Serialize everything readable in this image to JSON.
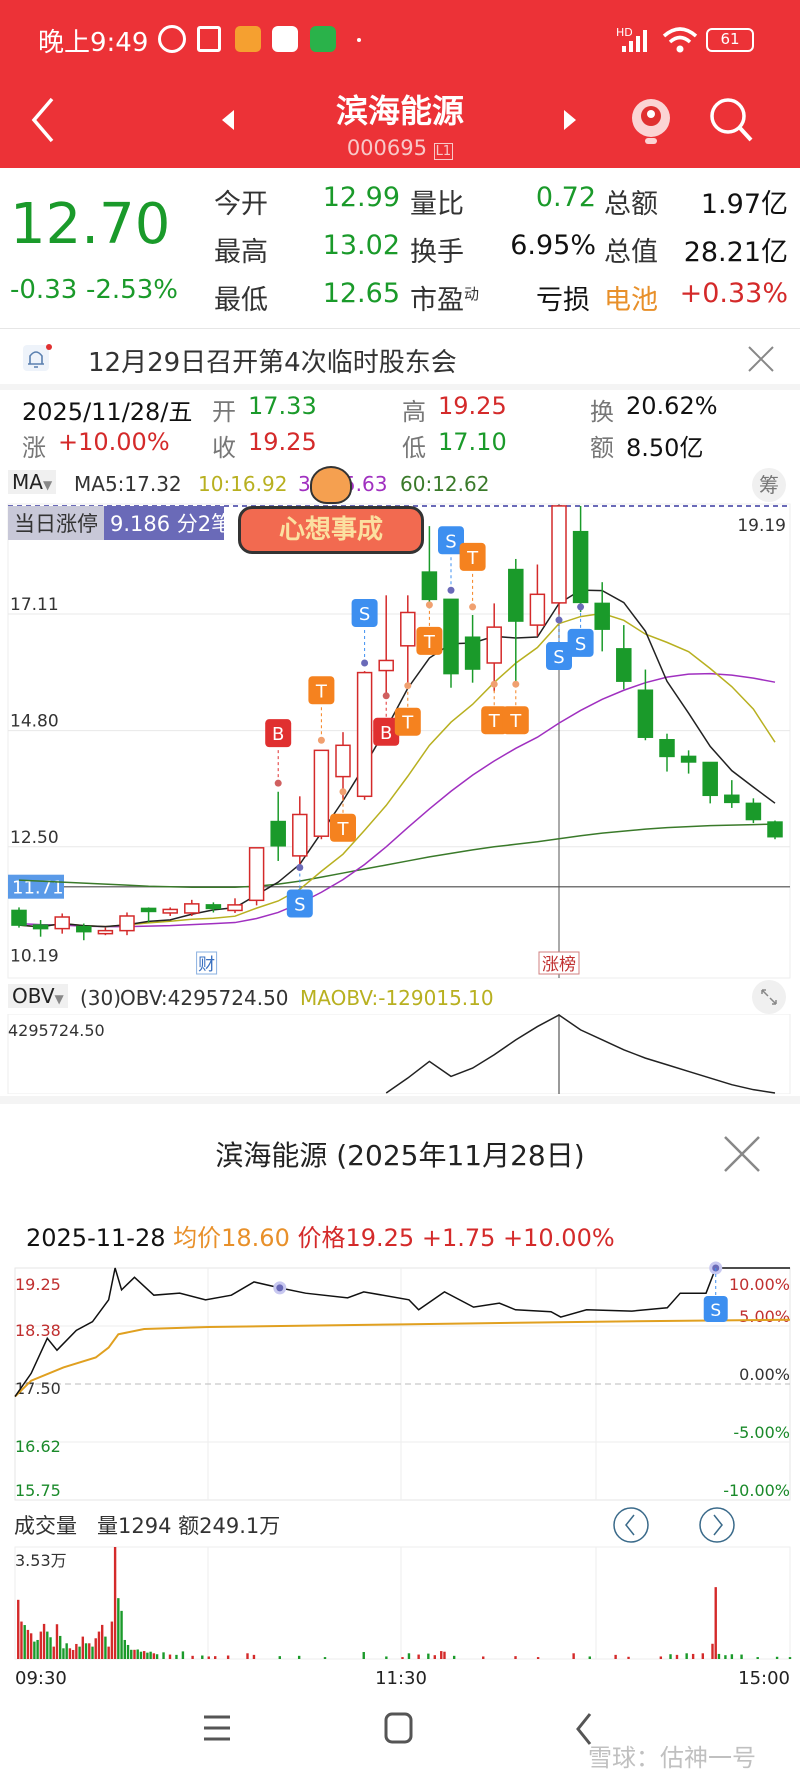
{
  "status": {
    "time": "晚上9:49",
    "battery": "61",
    "signal": "HD"
  },
  "header": {
    "title": "滨海能源",
    "code": "000695",
    "level": "L1"
  },
  "quote": {
    "price": "12.70",
    "change": "-0.33",
    "change_pct": "-2.53%",
    "rows": [
      [
        {
          "l": "今开",
          "v": "12.99",
          "c": "g"
        },
        {
          "l": "量比",
          "v": "0.72",
          "c": "g"
        },
        {
          "l": "总额",
          "v": "1.97亿",
          "c": "k"
        }
      ],
      [
        {
          "l": "最高",
          "v": "13.02",
          "c": "g"
        },
        {
          "l": "换手",
          "v": "6.95%",
          "c": "k"
        },
        {
          "l": "总值",
          "v": "28.21亿",
          "c": "k"
        }
      ],
      [
        {
          "l": "最低",
          "v": "12.65",
          "c": "g"
        },
        {
          "l": "市盈",
          "sup": "动",
          "v": "亏损",
          "c": "k"
        },
        {
          "l": "电池",
          "v": "+0.33%",
          "c": "r"
        }
      ]
    ]
  },
  "notice": {
    "text": "12月29日召开第4次临时股东会"
  },
  "day_info": {
    "date": "2025/11/28/五",
    "open_l": "开",
    "open": "17.33",
    "high_l": "高",
    "high": "19.25",
    "turn_l": "换",
    "turn": "20.62%",
    "chg_l": "涨",
    "chg": "+10.00%",
    "close_l": "收",
    "close": "19.25",
    "low_l": "低",
    "low": "17.10",
    "amt_l": "额",
    "amt": "8.50亿"
  },
  "ma_bar": {
    "selector": "MA",
    "ma5": "MA5:17.32",
    "ma10": "10:16.92",
    "ma30": "30:15.63",
    "ma60": "60:12.62",
    "chip_btn": "筹"
  },
  "limit_tag": {
    "label": "当日涨停",
    "value": "9.186 分2笔"
  },
  "sticker": {
    "text": "心想事成"
  },
  "colors": {
    "up": "#d42a2a",
    "down": "#1a9a2a",
    "ma5": "#222222",
    "ma10": "#b8b020",
    "ma30": "#a030c0",
    "ma60": "#3a7a2a",
    "avg": "#e0a020",
    "header": "#ec3237"
  },
  "chart_data": [
    {
      "type": "candlestick",
      "title": "",
      "y_ticks": [
        "19.19",
        "17.11",
        "14.80",
        "12.50",
        "10.19"
      ],
      "price_line": "11.71",
      "crosshair_index": 25,
      "event_labels": [
        {
          "index": 6,
          "text": "财"
        },
        {
          "index": 25,
          "text": "涨榜"
        }
      ],
      "ohlc": [
        [
          11.24,
          11.3,
          10.9,
          10.95
        ],
        [
          10.95,
          11.05,
          10.72,
          10.88
        ],
        [
          10.88,
          11.18,
          10.78,
          11.11
        ],
        [
          10.92,
          10.98,
          10.65,
          10.82
        ],
        [
          10.78,
          10.9,
          10.75,
          10.84
        ],
        [
          10.84,
          11.2,
          10.75,
          11.13
        ],
        [
          11.28,
          11.3,
          11.0,
          11.22
        ],
        [
          11.19,
          11.3,
          11.13,
          11.26
        ],
        [
          11.19,
          11.45,
          11.13,
          11.37
        ],
        [
          11.35,
          11.4,
          11.2,
          11.28
        ],
        [
          11.24,
          11.48,
          11.19,
          11.35
        ],
        [
          11.44,
          12.48,
          11.34,
          12.48
        ],
        [
          13.0,
          13.59,
          12.22,
          12.52
        ],
        [
          12.32,
          13.5,
          12.12,
          13.14
        ],
        [
          12.71,
          14.41,
          12.65,
          14.41
        ],
        [
          13.89,
          14.77,
          13.43,
          14.51
        ],
        [
          13.5,
          15.98,
          13.43,
          15.95
        ],
        [
          15.99,
          17.48,
          15.46,
          16.19
        ],
        [
          16.48,
          17.48,
          15.72,
          17.14
        ],
        [
          17.94,
          18.85,
          17.22,
          17.4
        ],
        [
          17.4,
          17.4,
          15.65,
          15.93
        ],
        [
          16.65,
          17.09,
          15.75,
          16.02
        ],
        [
          16.14,
          17.32,
          15.58,
          16.85
        ],
        [
          17.99,
          18.2,
          15.72,
          16.97
        ],
        [
          16.89,
          18.09,
          16.67,
          17.5
        ],
        [
          17.33,
          19.25,
          17.1,
          19.25
        ],
        [
          18.74,
          19.25,
          17.15,
          17.34
        ],
        [
          17.32,
          17.74,
          16.37,
          16.81
        ],
        [
          16.42,
          16.89,
          15.62,
          15.78
        ],
        [
          15.6,
          16.01,
          14.61,
          14.67
        ],
        [
          14.62,
          14.74,
          13.99,
          14.29
        ],
        [
          14.29,
          14.41,
          13.95,
          14.18
        ],
        [
          14.17,
          14.17,
          13.36,
          13.52
        ],
        [
          13.52,
          13.82,
          13.27,
          13.38
        ],
        [
          13.36,
          13.46,
          12.97,
          13.04
        ],
        [
          12.99,
          13.02,
          12.65,
          12.7
        ]
      ],
      "ma30": [
        10.98,
        10.96,
        10.95,
        10.93,
        10.92,
        10.92,
        10.93,
        10.94,
        10.96,
        10.98,
        11.0,
        11.08,
        11.2,
        11.38,
        11.6,
        11.85,
        12.15,
        12.5,
        12.88,
        13.25,
        13.6,
        13.92,
        14.2,
        14.45,
        14.67,
        14.95,
        15.2,
        15.42,
        15.6,
        15.75,
        15.86,
        15.92,
        15.93,
        15.9,
        15.84,
        15.76
      ],
      "ma60": [
        11.84,
        11.82,
        11.8,
        11.78,
        11.76,
        11.74,
        11.72,
        11.71,
        11.7,
        11.7,
        11.7,
        11.72,
        11.76,
        11.82,
        11.9,
        11.98,
        12.06,
        12.14,
        12.22,
        12.3,
        12.37,
        12.44,
        12.5,
        12.55,
        12.6,
        12.66,
        12.72,
        12.77,
        12.81,
        12.85,
        12.88,
        12.9,
        12.92,
        12.93,
        12.94,
        12.95
      ],
      "signals": [
        {
          "i": 12,
          "t": "B",
          "p": 13.76,
          "side": "above"
        },
        {
          "i": 13,
          "t": "S",
          "p": 12.09,
          "side": "below"
        },
        {
          "i": 14,
          "t": "T",
          "p": 14.61,
          "side": "above"
        },
        {
          "i": 15,
          "t": "T",
          "p": 13.59,
          "side": "below"
        },
        {
          "i": 16,
          "t": "S",
          "p": 16.14,
          "side": "above"
        },
        {
          "i": 17,
          "t": "B",
          "p": 15.49,
          "side": "below"
        },
        {
          "i": 18,
          "t": "T",
          "p": 15.69,
          "side": "below"
        },
        {
          "i": 19,
          "t": "T",
          "p": 17.29,
          "side": "below"
        },
        {
          "i": 20,
          "t": "S",
          "p": 17.58,
          "side": "above"
        },
        {
          "i": 21,
          "t": "T",
          "p": 17.25,
          "side": "above"
        },
        {
          "i": 22,
          "t": "T",
          "p": 15.72,
          "side": "below"
        },
        {
          "i": 23,
          "t": "T",
          "p": 15.72,
          "side": "below"
        },
        {
          "i": 25,
          "t": "S",
          "p": 16.99,
          "side": "below"
        },
        {
          "i": 26,
          "t": "S",
          "p": 17.25,
          "side": "below"
        }
      ]
    },
    {
      "type": "line",
      "title": "",
      "indicator": "OBV",
      "period": "(30)",
      "obv_label": "OBV:4295724.50",
      "maobv_label": "MAOBV:-129015.10",
      "y_max_label": "4295724.50",
      "start_index": 17,
      "values": [
        -400000,
        500000,
        1500000,
        600000,
        1100000,
        1900000,
        2800000,
        3600000,
        4295724.5,
        3400000,
        2800000,
        2200000,
        1700000,
        1300000,
        900000,
        500000,
        100000,
        -200000,
        -400000
      ]
    },
    {
      "type": "line",
      "title": "滨海能源 (2025年11月28日)",
      "info_date": "2025-11-28",
      "avg_l": "均价",
      "avg": "18.60",
      "price_l": "价格",
      "price": "19.25",
      "chg": "+1.75",
      "pct": "+10.00%",
      "prev_close": 17.5,
      "y_ticks_left": [
        "19.25",
        "18.38",
        "17.50",
        "16.62",
        "15.75"
      ],
      "y_ticks_right": [
        "10.00%",
        "5.00%",
        "0.00%",
        "-5.00%",
        "-10.00%"
      ],
      "price_series": [
        [
          0,
          17.31
        ],
        [
          5,
          17.66
        ],
        [
          10,
          18.19
        ],
        [
          13,
          18.01
        ],
        [
          19,
          18.31
        ],
        [
          24,
          18.44
        ],
        [
          29,
          18.77
        ],
        [
          31,
          19.25
        ],
        [
          33,
          18.92
        ],
        [
          37,
          19.11
        ],
        [
          43,
          18.84
        ],
        [
          51,
          18.87
        ],
        [
          59,
          18.77
        ],
        [
          67,
          18.84
        ],
        [
          74,
          19.04
        ],
        [
          82,
          18.95
        ],
        [
          90,
          18.87
        ],
        [
          103,
          18.8
        ],
        [
          108,
          18.89
        ],
        [
          122,
          18.77
        ],
        [
          125,
          18.62
        ],
        [
          133,
          18.89
        ],
        [
          142,
          18.66
        ],
        [
          150,
          18.72
        ],
        [
          155,
          18.62
        ],
        [
          166,
          18.59
        ],
        [
          169,
          18.51
        ],
        [
          177,
          18.62
        ],
        [
          191,
          18.6
        ],
        [
          202,
          18.65
        ],
        [
          206,
          18.87
        ],
        [
          214,
          18.87
        ],
        [
          217,
          19.25
        ],
        [
          240,
          19.25
        ]
      ],
      "avg_series": [
        [
          0,
          17.31
        ],
        [
          5,
          17.55
        ],
        [
          15,
          17.75
        ],
        [
          25,
          17.9
        ],
        [
          29,
          18.05
        ],
        [
          32,
          18.25
        ],
        [
          40,
          18.33
        ],
        [
          60,
          18.36
        ],
        [
          120,
          18.4
        ],
        [
          180,
          18.44
        ],
        [
          240,
          18.47
        ]
      ],
      "signal": {
        "t": "S",
        "minute": 217
      }
    },
    {
      "type": "bar",
      "title": "",
      "label": "成交量",
      "vol": "量1294",
      "amt": "额249.1万",
      "y_max_label": "3.53万",
      "y_max": 35300,
      "x_ticks": [
        "09:30",
        "11:30",
        "15:00"
      ],
      "bars": [
        [
          1,
          18650,
          "r"
        ],
        [
          2,
          11800,
          "r"
        ],
        [
          3,
          10700,
          "g"
        ],
        [
          4,
          9170,
          "r"
        ],
        [
          5,
          8100,
          "r"
        ],
        [
          6,
          5480,
          "g"
        ],
        [
          7,
          6000,
          "g"
        ],
        [
          8,
          8640,
          "r"
        ],
        [
          9,
          11060,
          "r"
        ],
        [
          10,
          8640,
          "g"
        ],
        [
          11,
          6850,
          "g"
        ],
        [
          12,
          3900,
          "r"
        ],
        [
          13,
          10960,
          "r"
        ],
        [
          14,
          7270,
          "g"
        ],
        [
          15,
          3370,
          "g"
        ],
        [
          16,
          4950,
          "g"
        ],
        [
          17,
          3370,
          "r"
        ],
        [
          18,
          2850,
          "r"
        ],
        [
          19,
          4740,
          "r"
        ],
        [
          20,
          3900,
          "g"
        ],
        [
          21,
          7060,
          "r"
        ],
        [
          22,
          4950,
          "g"
        ],
        [
          23,
          4950,
          "r"
        ],
        [
          24,
          3900,
          "g"
        ],
        [
          25,
          6530,
          "r"
        ],
        [
          26,
          8640,
          "r"
        ],
        [
          27,
          10750,
          "r"
        ],
        [
          28,
          7060,
          "g"
        ],
        [
          29,
          3900,
          "r"
        ],
        [
          30,
          11800,
          "r"
        ],
        [
          31,
          35300,
          "r"
        ],
        [
          32,
          19180,
          "g"
        ],
        [
          33,
          15170,
          "g"
        ],
        [
          34,
          6000,
          "g"
        ],
        [
          35,
          4425,
          "g"
        ],
        [
          36,
          2900,
          "g"
        ],
        [
          37,
          2900,
          "r"
        ],
        [
          38,
          3000,
          "g"
        ],
        [
          39,
          2300,
          "g"
        ],
        [
          40,
          2500,
          "r"
        ],
        [
          41,
          2000,
          "g"
        ],
        [
          42,
          2300,
          "g"
        ],
        [
          43,
          1800,
          "r"
        ],
        [
          44,
          1500,
          "g"
        ],
        [
          46,
          2100,
          "g"
        ],
        [
          48,
          1400,
          "r"
        ],
        [
          50,
          1300,
          "g"
        ],
        [
          52,
          2400,
          "g"
        ],
        [
          55,
          1000,
          "r"
        ],
        [
          58,
          1100,
          "g"
        ],
        [
          60,
          800,
          "r"
        ],
        [
          62,
          900,
          "r"
        ],
        [
          66,
          1100,
          "r"
        ],
        [
          72,
          1800,
          "r"
        ],
        [
          74,
          1300,
          "r"
        ],
        [
          82,
          900,
          "g"
        ],
        [
          88,
          1000,
          "g"
        ],
        [
          96,
          600,
          "g"
        ],
        [
          108,
          2200,
          "g"
        ],
        [
          115,
          800,
          "g"
        ],
        [
          120,
          600,
          "r"
        ],
        [
          122,
          1800,
          "g"
        ],
        [
          125,
          1400,
          "r"
        ],
        [
          128,
          1700,
          "g"
        ],
        [
          130,
          1200,
          "r"
        ],
        [
          132,
          2500,
          "r"
        ],
        [
          133,
          2300,
          "r"
        ],
        [
          136,
          1000,
          "g"
        ],
        [
          145,
          800,
          "r"
        ],
        [
          155,
          900,
          "r"
        ],
        [
          162,
          600,
          "r"
        ],
        [
          173,
          1800,
          "r"
        ],
        [
          178,
          800,
          "g"
        ],
        [
          186,
          1300,
          "r"
        ],
        [
          190,
          700,
          "r"
        ],
        [
          200,
          800,
          "r"
        ],
        [
          203,
          1500,
          "g"
        ],
        [
          205,
          1300,
          "r"
        ],
        [
          208,
          1800,
          "g"
        ],
        [
          210,
          1600,
          "r"
        ],
        [
          213,
          1800,
          "r"
        ],
        [
          216,
          4800,
          "r"
        ],
        [
          217,
          22650,
          "r"
        ],
        [
          218,
          1600,
          "g"
        ],
        [
          220,
          1200,
          "g"
        ],
        [
          222,
          1500,
          "g"
        ],
        [
          225,
          1400,
          "g"
        ],
        [
          230,
          600,
          "g"
        ],
        [
          236,
          700,
          "g"
        ],
        [
          240,
          600,
          "g"
        ]
      ]
    }
  ],
  "watermark": "雪球：估神一号"
}
